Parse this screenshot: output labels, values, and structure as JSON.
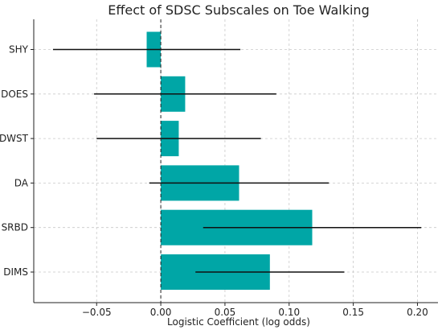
{
  "chart_data": {
    "type": "bar",
    "orientation": "horizontal",
    "title": "Effect of SDSC Subscales on Toe Walking",
    "xlabel": "Logistic Coefficient (log odds)",
    "ylabel": "",
    "xlim": [
      -0.099,
      0.216
    ],
    "x_ticks": [
      -0.05,
      0.0,
      0.05,
      0.1,
      0.15,
      0.2
    ],
    "x_tick_labels": [
      "−0.05",
      "0.00",
      "0.05",
      "0.10",
      "0.15",
      "0.20"
    ],
    "categories": [
      "SHY",
      "DOES",
      "DWST",
      "DA",
      "SRBD",
      "DIMS"
    ],
    "series": [
      {
        "values": [
          -0.011,
          0.019,
          0.014,
          0.061,
          0.118,
          0.085
        ],
        "error_low": [
          -0.084,
          -0.052,
          -0.05,
          -0.009,
          0.033,
          0.027
        ],
        "error_high": [
          0.062,
          0.09,
          0.078,
          0.131,
          0.203,
          0.143
        ]
      }
    ],
    "bar_color": "#00a6a6",
    "error_bar_color": "#111111",
    "reference_line": {
      "x": 0,
      "style": "dashed"
    },
    "grid": true
  }
}
